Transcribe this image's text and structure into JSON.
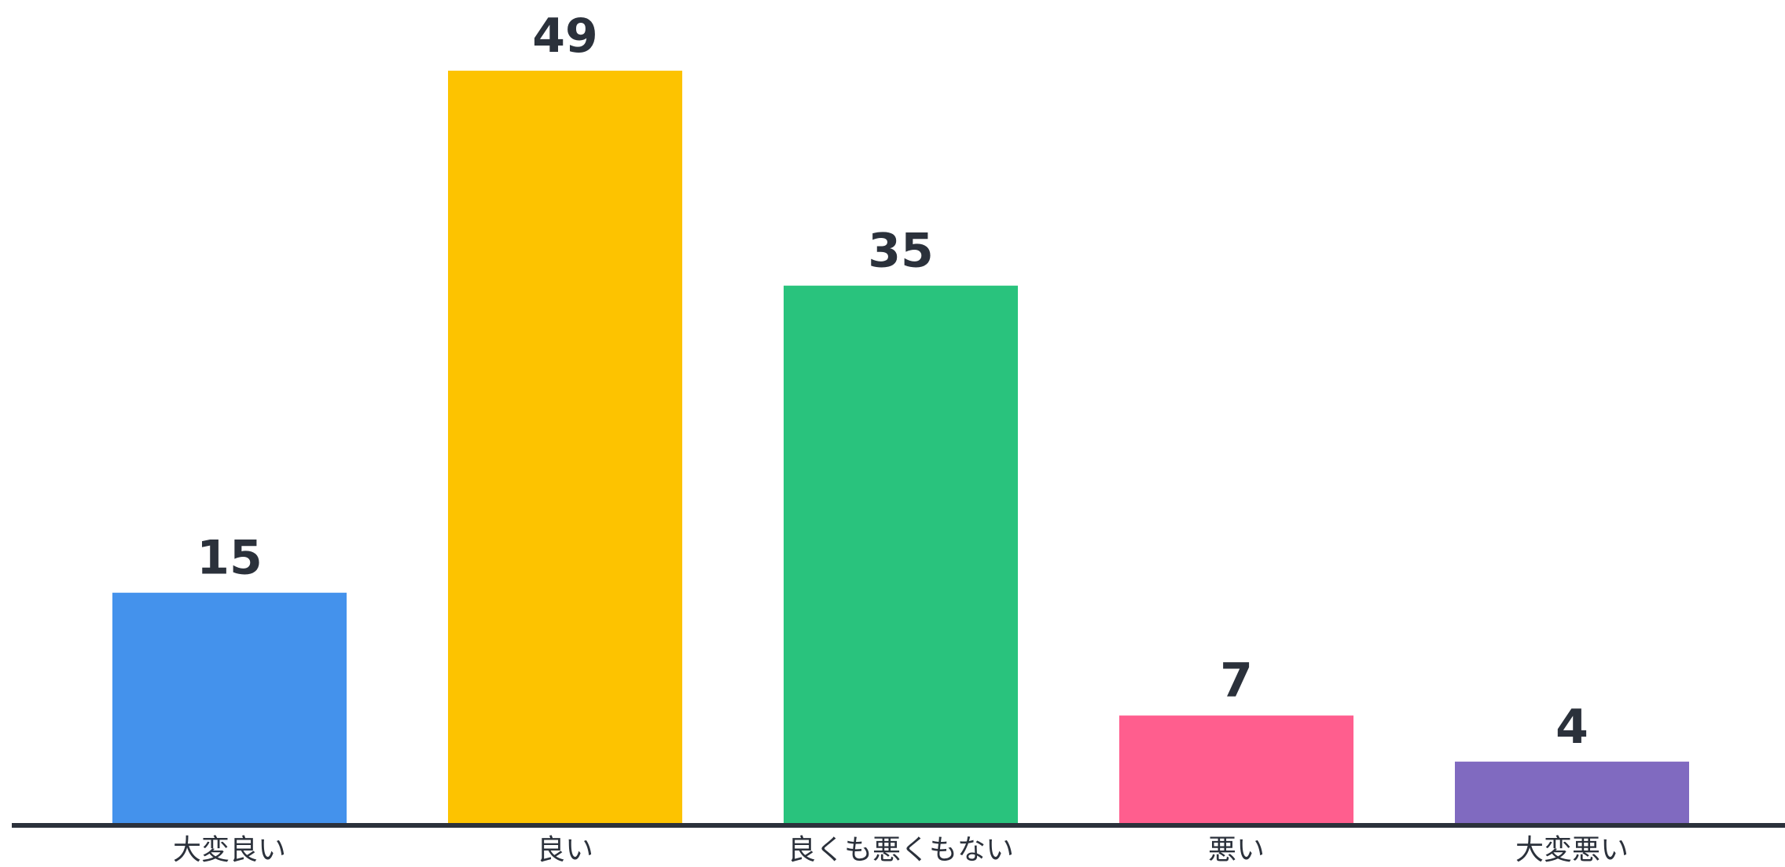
{
  "chart_data": {
    "type": "bar",
    "title": "",
    "xlabel": "",
    "ylabel": "",
    "categories": [
      "大変良い",
      "良い",
      "良くも悪くもない",
      "悪い",
      "大変悪い"
    ],
    "values": [
      15,
      49,
      35,
      7,
      4
    ],
    "colors": [
      "#4492EC",
      "#FDC300",
      "#29C37D",
      "#FF5E8E",
      "#806AC0"
    ],
    "ylim": [
      0,
      49
    ],
    "grid": false,
    "legend": "none",
    "axis_color": "#2b313b",
    "label_color": "#2b313b"
  }
}
